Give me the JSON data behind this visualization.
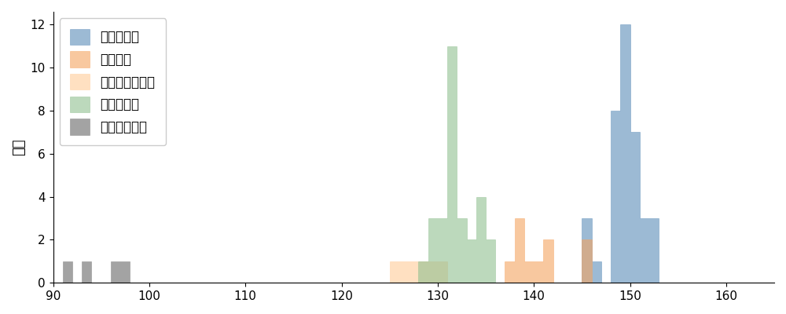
{
  "title": "",
  "ylabel": "球数",
  "xlim": [
    90,
    165
  ],
  "ylim": [
    0,
    12.6
  ],
  "bin_width": 1,
  "pitch_types": [
    {
      "name": "ストレート",
      "color": "#5B8DB8",
      "alpha": 0.6,
      "speeds": [
        149,
        149,
        149,
        149,
        149,
        149,
        149,
        149,
        149,
        149,
        149,
        149,
        148,
        148,
        148,
        148,
        148,
        148,
        148,
        148,
        150,
        150,
        150,
        150,
        150,
        150,
        150,
        151,
        151,
        151,
        152,
        152,
        152,
        145,
        145,
        145,
        146
      ]
    },
    {
      "name": "フォーク",
      "color": "#F4A460",
      "alpha": 0.6,
      "speeds": [
        137,
        138,
        138,
        141,
        145,
        145,
        138,
        139,
        140,
        141
      ]
    },
    {
      "name": "チェンジアップ",
      "color": "#FFCC99",
      "alpha": 0.6,
      "speeds": [
        125,
        126,
        127,
        128,
        129,
        130
      ]
    },
    {
      "name": "スライダー",
      "color": "#90C090",
      "alpha": 0.6,
      "speeds": [
        128,
        129,
        129,
        129,
        130,
        130,
        130,
        131,
        131,
        131,
        131,
        131,
        131,
        131,
        131,
        131,
        131,
        131,
        132,
        132,
        132,
        133,
        133,
        134,
        134,
        134,
        134,
        135,
        135
      ]
    },
    {
      "name": "スローカーブ",
      "color": "#999999",
      "alpha": 0.9,
      "speeds": [
        91,
        93,
        96,
        97
      ]
    }
  ]
}
